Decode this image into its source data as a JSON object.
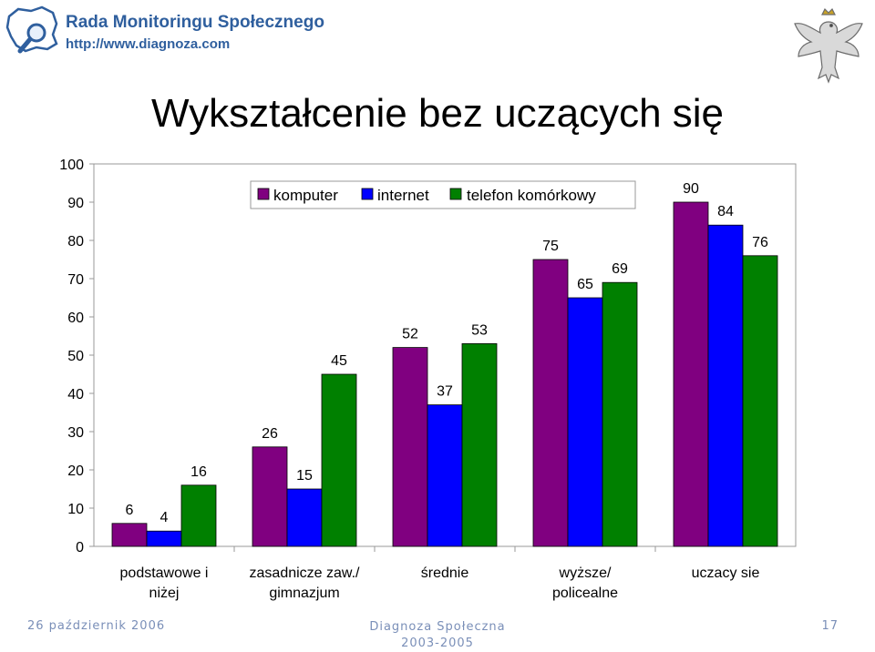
{
  "header": {
    "logo_title": "Rada Monitoringu Społecznego",
    "logo_url": "http://www.diagnoza.com"
  },
  "title": "Wykształcenie bez uczących się",
  "chart_data": {
    "type": "bar",
    "categories": [
      [
        "podstawowe i",
        "niżej"
      ],
      [
        "zasadnicze zaw./",
        "gimnazjum"
      ],
      [
        "średnie"
      ],
      [
        "wyższe/",
        "policealne"
      ],
      [
        "uczacy sie"
      ]
    ],
    "series": [
      {
        "name": "komputer",
        "color": "#800080",
        "values": [
          6,
          26,
          52,
          75,
          90
        ]
      },
      {
        "name": "internet",
        "color": "#0000ff",
        "values": [
          4,
          15,
          37,
          65,
          84
        ]
      },
      {
        "name": "telefon komórkowy",
        "color": "#008000",
        "values": [
          16,
          45,
          53,
          69,
          76
        ]
      }
    ],
    "ylim": [
      0,
      100
    ],
    "yticks": [
      0,
      10,
      20,
      30,
      40,
      50,
      60,
      70,
      80,
      90,
      100
    ],
    "legend": "top"
  },
  "footer": {
    "date": "26 październik 2006",
    "center_line1": "Diagnoza Społeczna",
    "center_line2": "2003-2005",
    "page": "17"
  },
  "icons": {
    "logo": "poland-map-magnifier-icon",
    "emblem": "eagle-emblem-icon"
  }
}
